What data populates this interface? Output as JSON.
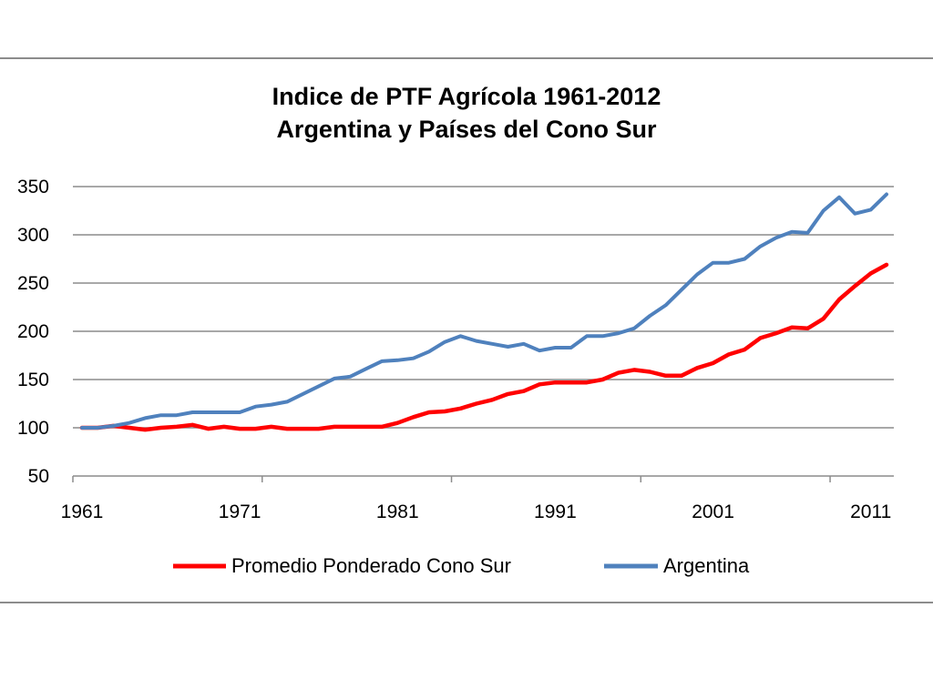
{
  "chart_data": {
    "type": "line",
    "title": [
      "Indice de PTF Agrícola 1961-2012",
      "Argentina y Países del Cono Sur"
    ],
    "xlabel": "",
    "ylabel": "",
    "xlim": [
      1961,
      2012
    ],
    "ylim": [
      50,
      350
    ],
    "y_ticks": [
      50,
      100,
      150,
      200,
      250,
      300,
      350
    ],
    "x_ticks": [
      1961,
      1971,
      1981,
      1991,
      2001,
      2011
    ],
    "grid": "horizontal",
    "legend_position": "bottom",
    "x": [
      1961,
      1962,
      1963,
      1964,
      1965,
      1966,
      1967,
      1968,
      1969,
      1970,
      1971,
      1972,
      1973,
      1974,
      1975,
      1976,
      1977,
      1978,
      1979,
      1980,
      1981,
      1982,
      1983,
      1984,
      1985,
      1986,
      1987,
      1988,
      1989,
      1990,
      1991,
      1992,
      1993,
      1994,
      1995,
      1996,
      1997,
      1998,
      1999,
      2000,
      2001,
      2002,
      2003,
      2004,
      2005,
      2006,
      2007,
      2008,
      2009,
      2010,
      2011,
      2012
    ],
    "series": [
      {
        "name": "Promedio Ponderado Cono Sur",
        "color": "#ff0000",
        "values": [
          100,
          100,
          102,
          100,
          98,
          100,
          101,
          103,
          99,
          101,
          99,
          99,
          101,
          99,
          99,
          99,
          101,
          101,
          101,
          101,
          105,
          111,
          116,
          117,
          120,
          125,
          129,
          135,
          138,
          145,
          147,
          147,
          147,
          150,
          157,
          160,
          158,
          154,
          154,
          162,
          167,
          176,
          181,
          193,
          198,
          204,
          203,
          213,
          233,
          247,
          260,
          269
        ]
      },
      {
        "name": "Argentina",
        "color": "#4f81bd",
        "values": [
          100,
          100,
          102,
          105,
          110,
          113,
          113,
          116,
          116,
          116,
          116,
          122,
          124,
          127,
          135,
          143,
          151,
          153,
          161,
          169,
          170,
          172,
          179,
          189,
          195,
          190,
          187,
          184,
          187,
          180,
          183,
          183,
          195,
          195,
          198,
          203,
          216,
          227,
          243,
          259,
          271,
          271,
          275,
          288,
          297,
          303,
          302,
          325,
          339,
          322,
          326,
          342
        ]
      }
    ]
  }
}
